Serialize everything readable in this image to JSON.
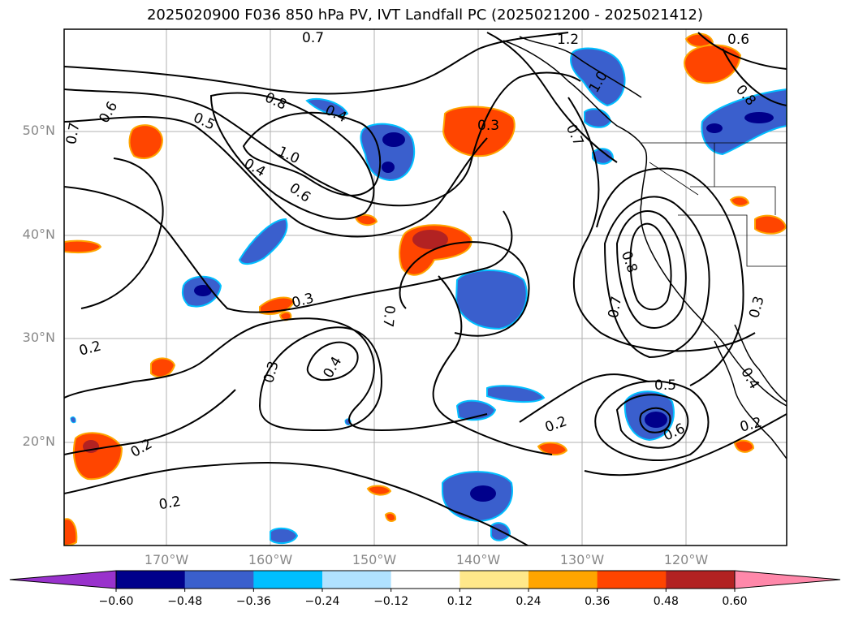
{
  "title": "2025020900 F036 850 hPa PV, IVT Landfall PC (2025021200 - 2025021412)",
  "lat_labels": [
    "50°N",
    "40°N",
    "30°N",
    "20°N"
  ],
  "lon_labels": [
    "170°W",
    "160°W",
    "150°W",
    "140°W",
    "130°W",
    "120°W"
  ],
  "contour_labels": [
    "1.2",
    "0.6",
    "0.7",
    "1.0",
    "0.8",
    "0.4",
    "0.6",
    "0.5",
    "0.8",
    "0.4",
    "1.0",
    "0.6",
    "0.7",
    "0.7",
    "0.8",
    "0.7",
    "0.3",
    "0.7",
    "0.3",
    "0.4",
    "0.3",
    "0.5",
    "0.6",
    "0.2",
    "0.2",
    "0.2",
    "0.2",
    "0.2",
    "0.4",
    "0.3"
  ],
  "colorbar": {
    "ticks": [
      "−0.60",
      "−0.48",
      "−0.36",
      "−0.24",
      "−0.12",
      "0.12",
      "0.24",
      "0.36",
      "0.48",
      "0.60"
    ],
    "colors": [
      "#9932cc",
      "#00008b",
      "#3a5fcd",
      "#00bfff",
      "#b0e2ff",
      "#ffffff",
      "#ffe88a",
      "#ffa500",
      "#ff4500",
      "#b22222",
      "#ff88aa"
    ]
  }
}
